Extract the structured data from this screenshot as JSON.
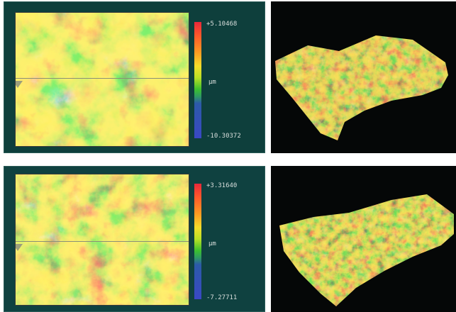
{
  "top_panel": {
    "scale_max": "+5.10468",
    "scale_unit": "µm",
    "scale_min": "-10.30372"
  },
  "bottom_panel": {
    "scale_max": "+3.31640",
    "scale_unit": "µm",
    "scale_min": "-7.27711"
  },
  "colors": {
    "panel_background": "#0e3f3c",
    "view3d_background": "#050707",
    "colormap": [
      "#e8283a",
      "#ff9a22",
      "#f5dd2a",
      "#b8e025",
      "#3bc02e",
      "#3a48c4"
    ]
  }
}
